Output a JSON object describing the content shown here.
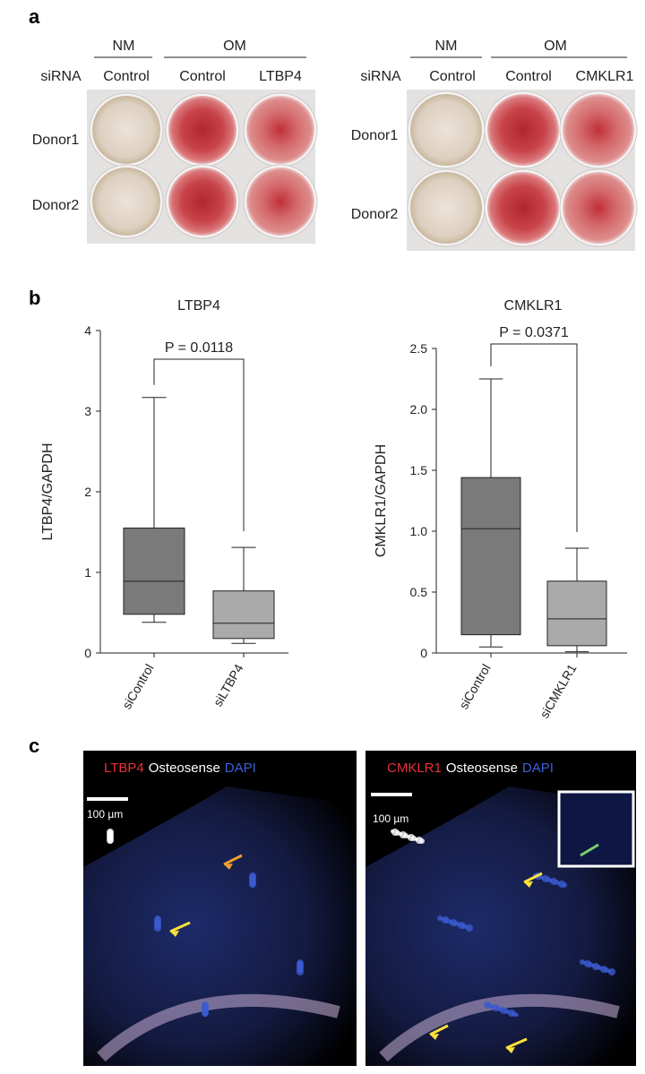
{
  "panel_labels": [
    "a",
    "b",
    "c"
  ],
  "panel_a": [
    {
      "groups": [
        "NM",
        "OM"
      ],
      "row_header": "siRNA",
      "columns": [
        "Control",
        "Control",
        "LTBP4"
      ],
      "rows": [
        "Donor1",
        "Donor2"
      ]
    },
    {
      "groups": [
        "NM",
        "OM"
      ],
      "row_header": "siRNA",
      "columns": [
        "Control",
        "Control",
        "CMKLR1"
      ],
      "rows": [
        "Donor1",
        "Donor2"
      ]
    }
  ],
  "chart_data": [
    {
      "type": "box",
      "title": "LTBP4",
      "y_label": "LTBP4/GAPDH",
      "annotation": "P = 0.0118",
      "categories": [
        "siControl",
        "siLTBP4"
      ],
      "colors": [
        "#7a7a7a",
        "#aaaaaa"
      ],
      "boxes": [
        {
          "min": 0.38,
          "q1": 0.48,
          "median": 0.89,
          "q3": 1.55,
          "max": 3.17
        },
        {
          "min": 0.12,
          "q1": 0.18,
          "median": 0.37,
          "q3": 0.77,
          "max": 1.31
        }
      ],
      "ylim": [
        0,
        4
      ],
      "yticks": [
        0,
        1,
        2,
        3,
        4
      ]
    },
    {
      "type": "box",
      "title": "CMKLR1",
      "y_label": "CMKLR1/GAPDH",
      "annotation": "P = 0.0371",
      "categories": [
        "siControl",
        "siCMKLR1"
      ],
      "colors": [
        "#7a7a7a",
        "#aaaaaa"
      ],
      "boxes": [
        {
          "min": 0.05,
          "q1": 0.15,
          "median": 1.02,
          "q3": 1.44,
          "max": 2.25
        },
        {
          "min": 0.01,
          "q1": 0.06,
          "median": 0.28,
          "q3": 0.59,
          "max": 0.86
        }
      ],
      "ylim": [
        0,
        2.5
      ],
      "yticks": [
        0,
        0.5,
        {
          "value": 1,
          "label": "1.0"
        },
        1.5,
        {
          "value": 2,
          "label": "2.0"
        },
        2.5
      ]
    }
  ],
  "panel_c": [
    {
      "stains": [
        {
          "text": "LTBP4",
          "color": "#e8303a"
        },
        {
          "text": "Osteosense",
          "color": "#ffffff"
        },
        {
          "text": "DAPI",
          "color": "#3a62d6"
        }
      ],
      "scale_bar": "100 µm"
    },
    {
      "stains": [
        {
          "text": "CMKLR1",
          "color": "#e8303a"
        },
        {
          "text": "Osteosense",
          "color": "#ffffff"
        },
        {
          "text": "DAPI",
          "color": "#3a62d6"
        }
      ],
      "scale_bar": "100 µm"
    }
  ]
}
